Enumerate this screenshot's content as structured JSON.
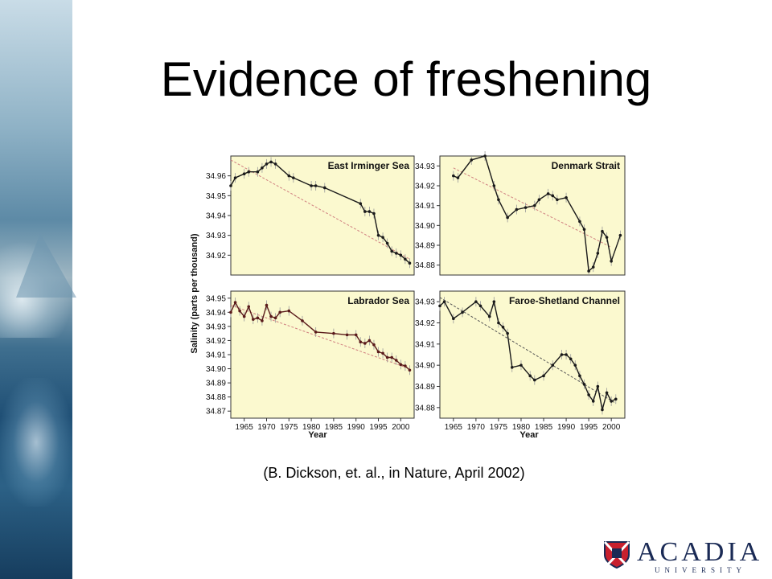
{
  "slide": {
    "title": "Evidence of freshening",
    "citation": "(B. Dickson, et. al., in Nature, April 2002)"
  },
  "logo": {
    "word": "ACADIA",
    "sub": "UNIVERSITY"
  },
  "colors": {
    "panel_bg": "#fbf9cf",
    "series": "#1a1a1a",
    "labrador_series": "#5a1a1a",
    "trend": "#d08080",
    "trend_dark": "#555555",
    "error_bar": "#999999"
  },
  "chart_data": [
    {
      "type": "line",
      "title": "East Irminger Sea",
      "xlabel": "",
      "ylabel": "Salinity (parts per thousand)",
      "xlim": [
        1962,
        2003
      ],
      "ylim": [
        34.91,
        34.97
      ],
      "yticks": [
        34.92,
        34.93,
        34.94,
        34.95,
        34.96
      ],
      "x": [
        1962,
        1963,
        1965,
        1966,
        1968,
        1969,
        1970,
        1971,
        1972,
        1975,
        1976,
        1980,
        1981,
        1983,
        1991,
        1992,
        1993,
        1994,
        1995,
        1996,
        1997,
        1998,
        1999,
        2000,
        2001,
        2002
      ],
      "y": [
        34.955,
        34.959,
        34.961,
        34.962,
        34.962,
        34.964,
        34.966,
        34.967,
        34.966,
        34.96,
        34.959,
        34.955,
        34.955,
        34.954,
        34.946,
        34.942,
        34.942,
        34.941,
        34.93,
        34.929,
        34.926,
        34.922,
        34.921,
        34.92,
        34.918,
        34.916
      ],
      "trend": [
        [
          1962,
          34.968
        ],
        [
          2002,
          34.918
        ]
      ],
      "trend_style": "light"
    },
    {
      "type": "line",
      "title": "Denmark Strait",
      "xlabel": "",
      "ylabel": "",
      "xlim": [
        1962,
        2003
      ],
      "ylim": [
        34.875,
        34.935
      ],
      "yticks": [
        34.88,
        34.89,
        34.9,
        34.91,
        34.92,
        34.93
      ],
      "x": [
        1965,
        1966,
        1969,
        1972,
        1974,
        1975,
        1977,
        1979,
        1981,
        1983,
        1984,
        1986,
        1987,
        1988,
        1990,
        1993,
        1994,
        1995,
        1996,
        1997,
        1998,
        1999,
        2000,
        2002
      ],
      "y": [
        34.925,
        34.924,
        34.933,
        34.935,
        34.92,
        34.913,
        34.904,
        34.908,
        34.909,
        34.91,
        34.913,
        34.916,
        34.915,
        34.913,
        34.914,
        34.902,
        34.898,
        34.877,
        34.879,
        34.886,
        34.897,
        34.894,
        34.882,
        34.895
      ],
      "trend": [
        [
          1965,
          34.929
        ],
        [
          2000,
          34.889
        ]
      ],
      "trend_style": "light"
    },
    {
      "type": "line",
      "title": "Labrador Sea",
      "xlabel": "Year",
      "ylabel": "",
      "xlim": [
        1962,
        2003
      ],
      "ylim": [
        34.865,
        34.955
      ],
      "yticks": [
        34.87,
        34.88,
        34.89,
        34.9,
        34.91,
        34.92,
        34.93,
        34.94,
        34.95
      ],
      "xticks": [
        1965,
        1970,
        1975,
        1980,
        1985,
        1990,
        1995,
        2000
      ],
      "x": [
        1962,
        1963,
        1964,
        1965,
        1966,
        1967,
        1968,
        1969,
        1970,
        1971,
        1972,
        1973,
        1975,
        1978,
        1981,
        1985,
        1988,
        1990,
        1991,
        1992,
        1993,
        1994,
        1995,
        1996,
        1997,
        1998,
        1999,
        2000,
        2001,
        2002
      ],
      "y": [
        34.94,
        34.947,
        34.941,
        34.937,
        34.944,
        34.935,
        34.936,
        34.934,
        34.945,
        34.937,
        34.936,
        34.94,
        34.941,
        34.934,
        34.926,
        34.925,
        34.924,
        34.924,
        34.919,
        34.918,
        34.92,
        34.917,
        34.912,
        34.911,
        34.908,
        34.908,
        34.906,
        34.903,
        34.902,
        34.899
      ],
      "trend": [
        [
          1962,
          34.945
        ],
        [
          2002,
          34.9
        ]
      ],
      "trend_style": "light"
    },
    {
      "type": "line",
      "title": "Faroe-Shetland Channel",
      "xlabel": "Year",
      "ylabel": "",
      "xlim": [
        1962,
        2003
      ],
      "ylim": [
        34.875,
        34.935
      ],
      "yticks": [
        34.88,
        34.89,
        34.9,
        34.91,
        34.92,
        34.93
      ],
      "xticks": [
        1965,
        1970,
        1975,
        1980,
        1985,
        1990,
        1995,
        2000
      ],
      "x": [
        1962,
        1963,
        1965,
        1967,
        1970,
        1971,
        1973,
        1974,
        1975,
        1976,
        1977,
        1978,
        1980,
        1982,
        1983,
        1985,
        1987,
        1989,
        1990,
        1991,
        1992,
        1993,
        1994,
        1995,
        1996,
        1997,
        1998,
        1999,
        2000,
        2001
      ],
      "y": [
        34.928,
        34.93,
        34.922,
        34.925,
        34.93,
        34.928,
        34.923,
        34.93,
        34.92,
        34.918,
        34.915,
        34.899,
        34.9,
        34.895,
        34.893,
        34.895,
        34.9,
        34.905,
        34.905,
        34.903,
        34.9,
        34.895,
        34.891,
        34.886,
        34.883,
        34.89,
        34.879,
        34.887,
        34.883,
        34.884
      ],
      "trend": [
        [
          1962,
          34.932
        ],
        [
          2001,
          34.882
        ]
      ],
      "trend_style": "dark"
    }
  ]
}
